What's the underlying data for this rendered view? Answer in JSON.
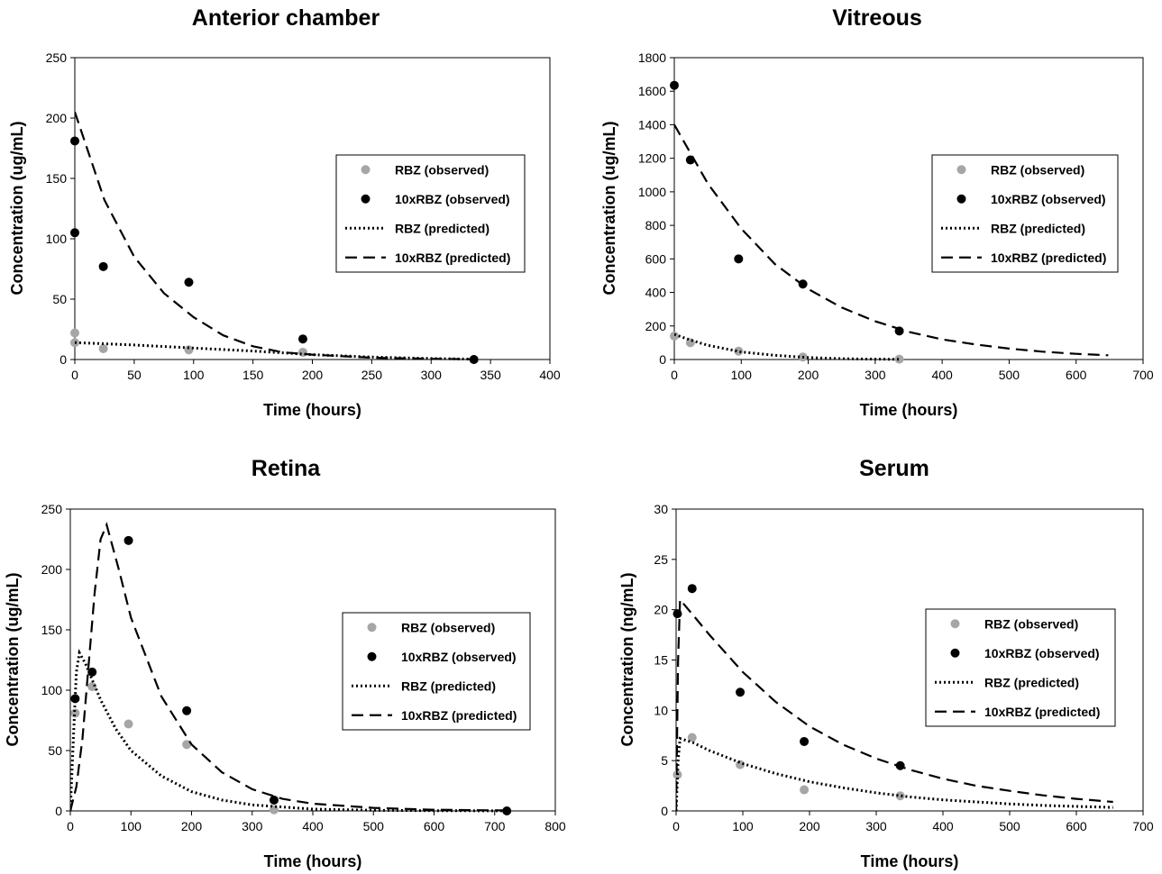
{
  "colors": {
    "observed_rbz": "#a6a6a6",
    "observed_10x": "#000000",
    "line": "#000000"
  },
  "legend": {
    "rbz_obs": "RBZ (observed)",
    "x10_obs": "10xRBZ (observed)",
    "rbz_pred": "RBZ (predicted)",
    "x10_pred": "10xRBZ (predicted)"
  },
  "chart_data": [
    {
      "type": "scatter",
      "title": "Anterior chamber",
      "xlabel": "Time (hours)",
      "ylabel": "Concentration (ug/mL)",
      "xlim": [
        0,
        400
      ],
      "xticks": [
        0,
        50,
        100,
        150,
        200,
        250,
        300,
        350,
        400
      ],
      "ylim": [
        0,
        250
      ],
      "yticks": [
        0,
        50,
        100,
        150,
        200,
        250
      ],
      "legend_position": "right",
      "series": [
        {
          "name": "RBZ (observed)",
          "style": "marker",
          "color": "#a6a6a6",
          "x": [
            0,
            0,
            24,
            96,
            192,
            336
          ],
          "y": [
            22,
            14,
            9,
            8,
            6,
            0
          ]
        },
        {
          "name": "10xRBZ (observed)",
          "style": "marker",
          "color": "#000000",
          "x": [
            0,
            0,
            24,
            96,
            192,
            336
          ],
          "y": [
            181,
            105,
            77,
            64,
            17,
            0
          ]
        },
        {
          "name": "RBZ (predicted)",
          "style": "dotted",
          "x": [
            0,
            50,
            100,
            150,
            200,
            250,
            300,
            336
          ],
          "y": [
            14,
            12,
            9.5,
            7,
            4,
            2,
            0.8,
            0.3
          ]
        },
        {
          "name": "10xRBZ (predicted)",
          "style": "dashed",
          "x": [
            0,
            25,
            50,
            75,
            100,
            125,
            150,
            175,
            200,
            250,
            300,
            336
          ],
          "y": [
            205,
            132,
            85,
            55,
            35,
            20,
            11,
            6,
            4,
            1.5,
            0.5,
            0.2
          ]
        }
      ]
    },
    {
      "type": "scatter",
      "title": "Vitreous",
      "xlabel": "Time (hours)",
      "ylabel": "Concentration (ug/mL)",
      "xlim": [
        0,
        700
      ],
      "xticks": [
        0,
        100,
        200,
        300,
        400,
        500,
        600,
        700
      ],
      "ylim": [
        0,
        1800
      ],
      "yticks": [
        0,
        200,
        400,
        600,
        800,
        1000,
        1200,
        1400,
        1600,
        1800
      ],
      "legend_position": "right",
      "series": [
        {
          "name": "RBZ (observed)",
          "style": "marker",
          "color": "#a6a6a6",
          "x": [
            0,
            24,
            96,
            192,
            336
          ],
          "y": [
            140,
            100,
            50,
            15,
            2
          ]
        },
        {
          "name": "10xRBZ (observed)",
          "style": "marker",
          "color": "#000000",
          "x": [
            0,
            24,
            96,
            192,
            336
          ],
          "y": [
            1635,
            1190,
            600,
            450,
            170
          ]
        },
        {
          "name": "RBZ (predicted)",
          "style": "dotted",
          "x": [
            0,
            25,
            50,
            100,
            150,
            200,
            250,
            300,
            336
          ],
          "y": [
            150,
            115,
            85,
            45,
            25,
            12,
            5,
            2,
            1
          ]
        },
        {
          "name": "10xRBZ (predicted)",
          "style": "dashed",
          "x": [
            0,
            50,
            100,
            150,
            200,
            250,
            300,
            350,
            400,
            450,
            500,
            550,
            600,
            648
          ],
          "y": [
            1400,
            1050,
            780,
            570,
            420,
            310,
            228,
            165,
            120,
            90,
            65,
            47,
            34,
            25
          ]
        }
      ]
    },
    {
      "type": "scatter",
      "title": "Retina",
      "xlabel": "Time (hours)",
      "ylabel": "Concentration (ug/mL)",
      "xlim": [
        0,
        800
      ],
      "xticks": [
        0,
        100,
        200,
        300,
        400,
        500,
        600,
        700,
        800
      ],
      "ylim": [
        0,
        250
      ],
      "yticks": [
        0,
        50,
        100,
        150,
        200,
        250
      ],
      "legend_position": "right",
      "series": [
        {
          "name": "RBZ (observed)",
          "style": "marker",
          "color": "#a6a6a6",
          "x": [
            8,
            36,
            96,
            192,
            336
          ],
          "y": [
            81,
            103,
            72,
            55,
            1
          ]
        },
        {
          "name": "10xRBZ (observed)",
          "style": "marker",
          "color": "#000000",
          "x": [
            8,
            36,
            96,
            192,
            336,
            720
          ],
          "y": [
            93,
            115,
            224,
            83,
            9,
            0
          ]
        },
        {
          "name": "RBZ (predicted)",
          "style": "dotted",
          "x": [
            0,
            5,
            10,
            15,
            25,
            50,
            75,
            100,
            150,
            200,
            250,
            300,
            400,
            500,
            600,
            720
          ],
          "y": [
            0,
            60,
            115,
            131,
            122,
            92,
            68,
            50,
            29,
            16,
            9,
            5,
            1.5,
            0.5,
            0.2,
            0.1
          ]
        },
        {
          "name": "10xRBZ (predicted)",
          "style": "dashed",
          "x": [
            0,
            10,
            20,
            30,
            40,
            50,
            60,
            80,
            100,
            150,
            200,
            250,
            300,
            350,
            400,
            500,
            600,
            720
          ],
          "y": [
            0,
            20,
            60,
            120,
            180,
            225,
            237,
            200,
            160,
            95,
            55,
            32,
            18,
            10,
            6,
            2.5,
            1,
            0.4
          ]
        }
      ]
    },
    {
      "type": "scatter",
      "title": "Serum",
      "xlabel": "Time (hours)",
      "ylabel": "Concentration (ng/mL)",
      "xlim": [
        0,
        700
      ],
      "xticks": [
        0,
        100,
        200,
        300,
        400,
        500,
        600,
        700
      ],
      "ylim": [
        0,
        30
      ],
      "yticks": [
        0,
        5,
        10,
        15,
        20,
        25,
        30
      ],
      "legend_position": "right",
      "series": [
        {
          "name": "RBZ (observed)",
          "style": "marker",
          "color": "#a6a6a6",
          "x": [
            2,
            24,
            96,
            192,
            336
          ],
          "y": [
            3.6,
            7.3,
            4.6,
            2.1,
            1.5
          ]
        },
        {
          "name": "10xRBZ (observed)",
          "style": "marker",
          "color": "#000000",
          "x": [
            2,
            24,
            96,
            192,
            336
          ],
          "y": [
            19.6,
            22.1,
            11.8,
            6.9,
            4.5
          ]
        },
        {
          "name": "RBZ (predicted)",
          "style": "dotted",
          "x": [
            0,
            3,
            6,
            25,
            50,
            100,
            150,
            200,
            250,
            300,
            350,
            400,
            450,
            500,
            550,
            600,
            655
          ],
          "y": [
            0,
            5,
            7.2,
            6.8,
            6.0,
            4.7,
            3.7,
            2.9,
            2.3,
            1.8,
            1.4,
            1.1,
            0.9,
            0.7,
            0.55,
            0.45,
            0.35
          ]
        },
        {
          "name": "10xRBZ (predicted)",
          "style": "dashed",
          "x": [
            0,
            3,
            6,
            25,
            50,
            100,
            150,
            200,
            250,
            300,
            350,
            400,
            450,
            500,
            550,
            600,
            655
          ],
          "y": [
            0,
            15,
            21,
            19.5,
            17.5,
            13.8,
            10.8,
            8.4,
            6.6,
            5.2,
            4.1,
            3.2,
            2.5,
            2.0,
            1.55,
            1.2,
            0.9
          ]
        }
      ]
    }
  ]
}
